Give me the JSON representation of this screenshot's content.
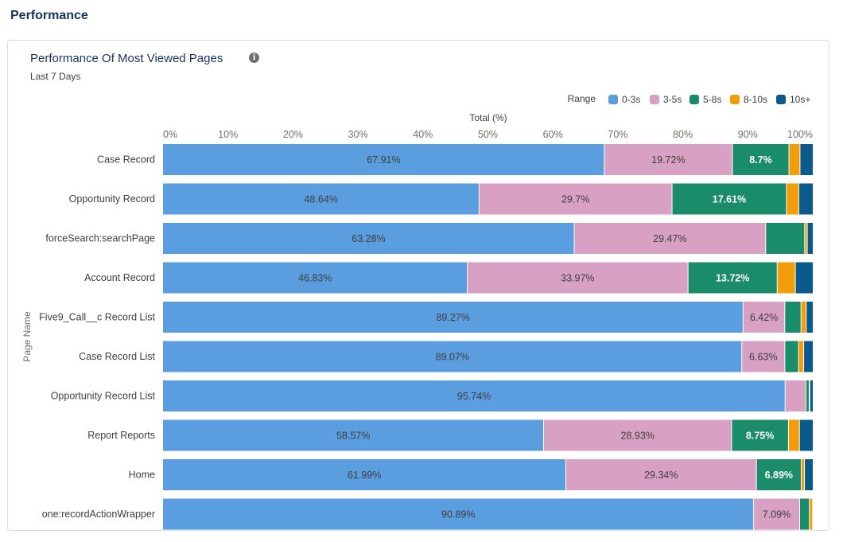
{
  "section": {
    "title": "Performance"
  },
  "card": {
    "title": "Performance Of Most Viewed Pages",
    "subtitle": "Last 7 Days",
    "info_icon": "info-icon"
  },
  "chart_data": {
    "type": "bar",
    "orientation": "horizontal",
    "stacked": true,
    "title": "Performance Of Most Viewed Pages",
    "subtitle": "Last 7 Days",
    "xlabel": "Total (%)",
    "ylabel": "Page Name",
    "xlim": [
      0,
      100
    ],
    "xticks": [
      "0%",
      "10%",
      "20%",
      "30%",
      "40%",
      "50%",
      "60%",
      "70%",
      "80%",
      "90%",
      "100%"
    ],
    "legend_title": "Range",
    "legend_position": "top-right",
    "categories": [
      "Case Record",
      "Opportunity Record",
      "forceSearch:searchPage",
      "Account Record",
      "Five9_Call__c Record List",
      "Case Record List",
      "Opportunity Record List",
      "Report Reports",
      "Home",
      "one:recordActionWrapper"
    ],
    "series": [
      {
        "name": "0-3s",
        "color": "#5b9ee0",
        "values": [
          67.91,
          48.64,
          63.28,
          46.83,
          89.27,
          89.07,
          95.74,
          58.57,
          61.99,
          90.89
        ],
        "labels": [
          "67.91%",
          "48.64%",
          "63.28%",
          "46.83%",
          "89.27%",
          "89.07%",
          "95.74%",
          "58.57%",
          "61.99%",
          "90.89%"
        ]
      },
      {
        "name": "3-5s",
        "color": "#d8a1c4",
        "values": [
          19.72,
          29.7,
          29.47,
          33.97,
          6.42,
          6.63,
          3.2,
          28.93,
          29.34,
          7.09
        ],
        "labels": [
          "19.72%",
          "29.7%",
          "29.47%",
          "33.97%",
          "6.42%",
          "6.63%",
          "",
          "28.93%",
          "29.34%",
          "7.09%"
        ]
      },
      {
        "name": "5-8s",
        "color": "#1b8c6a",
        "values": [
          8.7,
          17.61,
          6.0,
          13.72,
          2.5,
          2.1,
          0.5,
          8.75,
          6.89,
          1.5
        ],
        "labels": [
          "8.7%",
          "17.61%",
          "",
          "13.72%",
          "",
          "",
          "",
          "8.75%",
          "6.89%",
          ""
        ]
      },
      {
        "name": "8-10s",
        "color": "#f29e0c",
        "values": [
          1.7,
          1.9,
          0.4,
          2.8,
          0.8,
          0.8,
          0.1,
          1.7,
          0.5,
          0.5
        ],
        "labels": [
          "",
          "",
          "",
          "",
          "",
          "",
          "",
          "",
          "",
          ""
        ]
      },
      {
        "name": "10s+",
        "color": "#0b5a8c",
        "values": [
          1.97,
          2.15,
          0.85,
          2.68,
          1.01,
          1.4,
          0.46,
          2.05,
          1.28,
          0.02
        ],
        "labels": [
          "",
          "",
          "",
          "",
          "",
          "",
          "",
          "",
          "",
          ""
        ]
      }
    ]
  }
}
